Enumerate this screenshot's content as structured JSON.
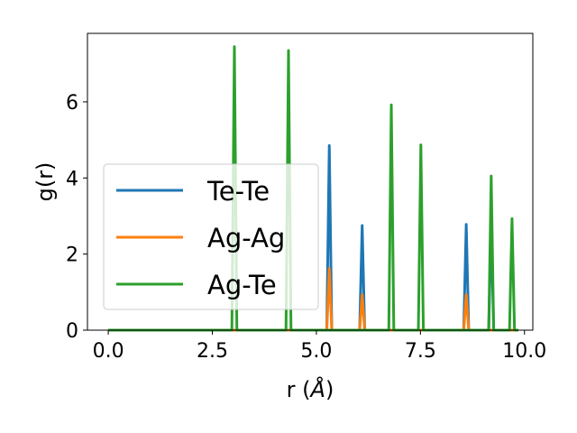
{
  "chart_data": {
    "type": "line",
    "title": "",
    "xlabel": "r (",
    "xlabel_unit": "Å",
    "xlabel_close": ")",
    "ylabel": "g(r)",
    "xlim": [
      -0.5,
      10.2
    ],
    "ylim": [
      0,
      7.8
    ],
    "xticks": [
      0.0,
      2.5,
      5.0,
      7.5,
      10.0
    ],
    "xtick_labels": [
      "0.0",
      "2.5",
      "5.0",
      "7.5",
      "10.0"
    ],
    "yticks": [
      0,
      2,
      4,
      6
    ],
    "ytick_labels": [
      "0",
      "2",
      "4",
      "6"
    ],
    "grid": false,
    "legend_position": "center-left",
    "line_extent": [
      0.0,
      9.85
    ],
    "series": [
      {
        "name": "Te-Te",
        "color": "#1f77b4",
        "peaks": [
          [
            5.31,
            4.85
          ],
          [
            6.1,
            2.75
          ],
          [
            8.6,
            2.78
          ],
          [
            9.2,
            2.75
          ]
        ]
      },
      {
        "name": "Ag-Ag",
        "color": "#ff7f0e",
        "peaks": [
          [
            5.31,
            1.62
          ],
          [
            6.1,
            0.93
          ],
          [
            8.6,
            0.93
          ]
        ]
      },
      {
        "name": "Ag-Te",
        "color": "#2ca02c",
        "peaks": [
          [
            3.03,
            7.45
          ],
          [
            4.33,
            7.35
          ],
          [
            6.8,
            5.92
          ],
          [
            7.51,
            4.87
          ],
          [
            9.2,
            4.05
          ],
          [
            9.7,
            2.93
          ]
        ]
      }
    ]
  }
}
